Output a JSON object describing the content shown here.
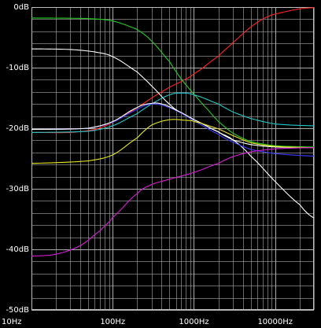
{
  "chart_data": {
    "type": "line",
    "x_scale": "log",
    "xlim": [
      10,
      30000
    ],
    "ylim": [
      -50,
      0
    ],
    "grid": true,
    "background_color": "#000000",
    "grid_color": "#bdbdbd",
    "text_color": "#ffffff",
    "y_tick_labels": [
      {
        "value": 0,
        "label": "0dB"
      },
      {
        "value": -10,
        "label": "-10dB"
      },
      {
        "value": -20,
        "label": "-20dB"
      },
      {
        "value": -30,
        "label": "-30dB"
      },
      {
        "value": -40,
        "label": "-40dB"
      },
      {
        "value": -50,
        "label": "-50dB"
      }
    ],
    "x_tick_labels": [
      {
        "value": 10,
        "label": "10Hz"
      },
      {
        "value": 100,
        "label": "100Hz"
      },
      {
        "value": 1000,
        "label": "1000Hz"
      },
      {
        "value": 10000,
        "label": "10000Hz"
      }
    ],
    "series": [
      {
        "color": "#ff2020",
        "points": [
          [
            10,
            -20.7
          ],
          [
            30,
            -20.7
          ],
          [
            60,
            -20.2
          ],
          [
            100,
            -19.0
          ],
          [
            200,
            -16.6
          ],
          [
            400,
            -14.0
          ],
          [
            700,
            -12.3
          ],
          [
            1000,
            -11.0
          ],
          [
            2000,
            -8.1
          ],
          [
            3000,
            -5.9
          ],
          [
            5000,
            -3.3
          ],
          [
            8000,
            -1.6
          ],
          [
            12000,
            -0.9
          ],
          [
            20000,
            -0.3
          ],
          [
            30000,
            -0.1
          ]
        ]
      },
      {
        "color": "#22cc22",
        "points": [
          [
            10,
            -1.8
          ],
          [
            50,
            -1.9
          ],
          [
            100,
            -2.3
          ],
          [
            200,
            -3.7
          ],
          [
            300,
            -5.6
          ],
          [
            500,
            -9.0
          ],
          [
            700,
            -11.9
          ],
          [
            1000,
            -14.4
          ],
          [
            1500,
            -17.0
          ],
          [
            2000,
            -18.9
          ],
          [
            3000,
            -20.8
          ],
          [
            5000,
            -22.2
          ],
          [
            10000,
            -22.9
          ],
          [
            30000,
            -23.1
          ]
        ]
      },
      {
        "color": "#ffffff",
        "points": [
          [
            10,
            -6.9
          ],
          [
            30,
            -7.0
          ],
          [
            60,
            -7.4
          ],
          [
            100,
            -8.2
          ],
          [
            200,
            -10.7
          ],
          [
            300,
            -13.0
          ],
          [
            500,
            -16.0
          ],
          [
            700,
            -17.5
          ],
          [
            1000,
            -18.6
          ],
          [
            2000,
            -20.6
          ],
          [
            3000,
            -21.9
          ],
          [
            5000,
            -24.6
          ],
          [
            10000,
            -28.8
          ],
          [
            20000,
            -32.6
          ],
          [
            30000,
            -34.8
          ]
        ]
      },
      {
        "color": "#22c8c8",
        "points": [
          [
            10,
            -20.7
          ],
          [
            50,
            -20.5
          ],
          [
            100,
            -19.6
          ],
          [
            200,
            -17.6
          ],
          [
            300,
            -16.0
          ],
          [
            500,
            -14.5
          ],
          [
            700,
            -14.2
          ],
          [
            1000,
            -14.5
          ],
          [
            2000,
            -16.0
          ],
          [
            3000,
            -17.3
          ],
          [
            5000,
            -18.4
          ],
          [
            10000,
            -19.3
          ],
          [
            30000,
            -19.6
          ]
        ]
      },
      {
        "color": "#3a3aff",
        "points": [
          [
            10,
            -20.2
          ],
          [
            50,
            -20.0
          ],
          [
            100,
            -19.0
          ],
          [
            200,
            -16.9
          ],
          [
            300,
            -16.0
          ],
          [
            400,
            -16.2
          ],
          [
            600,
            -17.1
          ],
          [
            1000,
            -18.8
          ],
          [
            2000,
            -21.0
          ],
          [
            3000,
            -22.3
          ],
          [
            5000,
            -23.5
          ],
          [
            10000,
            -24.2
          ],
          [
            30000,
            -24.6
          ]
        ]
      },
      {
        "color": "#ffffff",
        "points": [
          [
            10,
            -20.2
          ],
          [
            50,
            -20.0
          ],
          [
            100,
            -18.9
          ],
          [
            200,
            -16.6
          ],
          [
            300,
            -15.9
          ],
          [
            400,
            -16.0
          ],
          [
            600,
            -17.0
          ],
          [
            1000,
            -18.6
          ],
          [
            2000,
            -20.6
          ],
          [
            3000,
            -21.9
          ],
          [
            5000,
            -22.7
          ],
          [
            10000,
            -23.1
          ],
          [
            30000,
            -23.2
          ]
        ]
      },
      {
        "color": "#e8e820",
        "points": [
          [
            10,
            -25.8
          ],
          [
            50,
            -25.4
          ],
          [
            100,
            -24.4
          ],
          [
            200,
            -21.6
          ],
          [
            300,
            -19.5
          ],
          [
            500,
            -18.6
          ],
          [
            800,
            -18.7
          ],
          [
            1000,
            -18.9
          ],
          [
            2000,
            -20.1
          ],
          [
            3000,
            -21.2
          ],
          [
            5000,
            -22.4
          ],
          [
            10000,
            -23.0
          ],
          [
            30000,
            -23.2
          ]
        ]
      },
      {
        "color": "#d81ad8",
        "points": [
          [
            10,
            -41.1
          ],
          [
            20,
            -40.8
          ],
          [
            40,
            -39.4
          ],
          [
            70,
            -36.9
          ],
          [
            100,
            -34.7
          ],
          [
            200,
            -30.8
          ],
          [
            300,
            -29.3
          ],
          [
            500,
            -28.4
          ],
          [
            1000,
            -27.3
          ],
          [
            2000,
            -25.8
          ],
          [
            3000,
            -24.7
          ],
          [
            5000,
            -23.9
          ],
          [
            10000,
            -23.4
          ],
          [
            30000,
            -23.2
          ]
        ]
      }
    ]
  }
}
